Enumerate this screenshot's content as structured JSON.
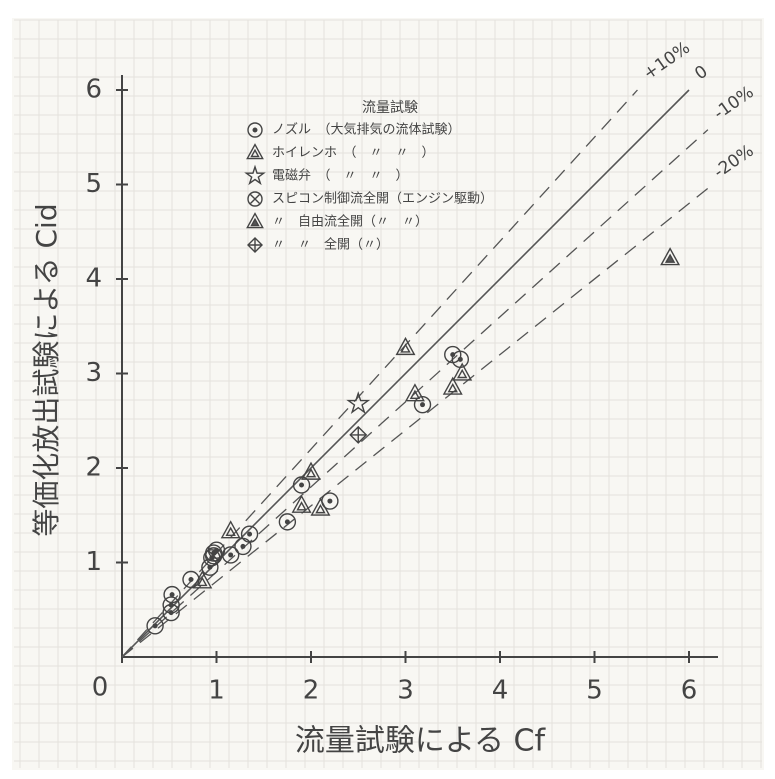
{
  "chart_data": {
    "type": "scatter",
    "x_label": "流量試験による Cf",
    "y_label": "等価化放出試験による Cid",
    "legend_title": "流量試験",
    "xlim": [
      0,
      6.3
    ],
    "ylim": [
      0,
      6.3
    ],
    "xticks": [
      0,
      1,
      2,
      3,
      4,
      5,
      6
    ],
    "yticks": [
      1,
      2,
      3,
      4,
      5,
      6
    ],
    "grid": true,
    "reference_lines": [
      {
        "label": "+10%",
        "ratio": 1.1,
        "dashed": true
      },
      {
        "label": "0",
        "ratio": 1.0,
        "dashed": false
      },
      {
        "label": "-10%",
        "ratio": 0.9,
        "dashed": true
      },
      {
        "label": "-20%",
        "ratio": 0.8,
        "dashed": true
      }
    ],
    "series": [
      {
        "name": "ノズル　（大気排気の流体試験）",
        "marker": "circle-dot",
        "color": "#444",
        "x": [
          0.35,
          0.52,
          0.52,
          0.53,
          0.73,
          0.93,
          0.95,
          0.97,
          1.0,
          1.15,
          1.28,
          1.35,
          1.75,
          1.9,
          2.2,
          3.5,
          3.58,
          3.18
        ],
        "y": [
          0.33,
          0.47,
          0.55,
          0.66,
          0.82,
          0.95,
          1.05,
          1.1,
          1.13,
          1.08,
          1.17,
          1.3,
          1.43,
          1.82,
          1.65,
          3.2,
          3.15,
          2.67
        ]
      },
      {
        "name": "ホイレンホ　（　〃　〃　）",
        "marker": "triangle",
        "color": "#444",
        "x": [
          1.15,
          0.85,
          1.9,
          2.0,
          2.1,
          3.0,
          3.1,
          3.5,
          3.6
        ],
        "y": [
          1.33,
          0.8,
          1.6,
          1.95,
          1.57,
          3.27,
          2.78,
          2.85,
          3.0
        ]
      },
      {
        "name": "電磁弁　（　〃　〃　）",
        "marker": "star",
        "color": "#444",
        "x": [
          2.5
        ],
        "y": [
          2.68
        ]
      },
      {
        "name": "スピコン制御流全開（エンジン駆動）",
        "marker": "circle-x",
        "color": "#444",
        "x": [
          0.97
        ],
        "y": [
          1.07
        ]
      },
      {
        "name": "〃　自由流全開（〃　〃）",
        "marker": "triangle-filled",
        "color": "#444",
        "x": [
          5.8
        ],
        "y": [
          4.22
        ]
      },
      {
        "name": "〃　〃　全開（〃）",
        "marker": "diamond",
        "color": "#444",
        "x": [
          2.5
        ],
        "y": [
          2.35
        ]
      }
    ]
  }
}
